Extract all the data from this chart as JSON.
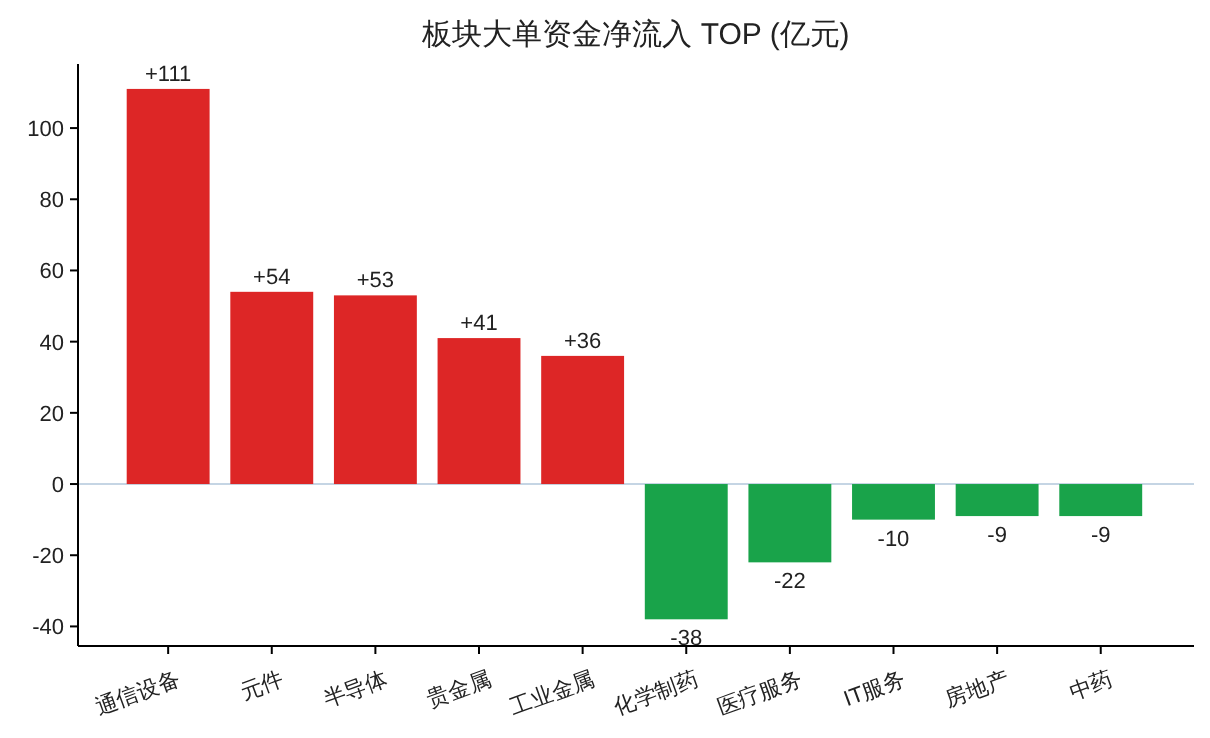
{
  "chart_data": {
    "type": "bar",
    "title": "板块大单资金净流入 TOP (亿元)",
    "categories": [
      "通信设备",
      "元件",
      "半导体",
      "贵金属",
      "工业金属",
      "化学制药",
      "医疗服务",
      "IT服务",
      "房地产",
      "中药"
    ],
    "values": [
      111,
      54,
      53,
      41,
      36,
      -38,
      -22,
      -10,
      -9,
      -9
    ],
    "colors": [
      "#dd2626",
      "#dd2626",
      "#dd2626",
      "#dd2626",
      "#dd2626",
      "#19a34a",
      "#19a34a",
      "#19a34a",
      "#19a34a",
      "#19a34a"
    ],
    "value_labels": [
      "+111",
      "+54",
      "+53",
      "+41",
      "+36",
      "-38",
      "-22",
      "-10",
      "-9",
      "-9"
    ],
    "ylim": [
      -45.5,
      118
    ],
    "yticks": [
      -40,
      -20,
      0,
      20,
      40,
      60,
      80,
      100
    ],
    "ref_lines": [
      {
        "axis": "y",
        "value": 0,
        "color": "#c5d5e4"
      }
    ],
    "grid": false
  }
}
